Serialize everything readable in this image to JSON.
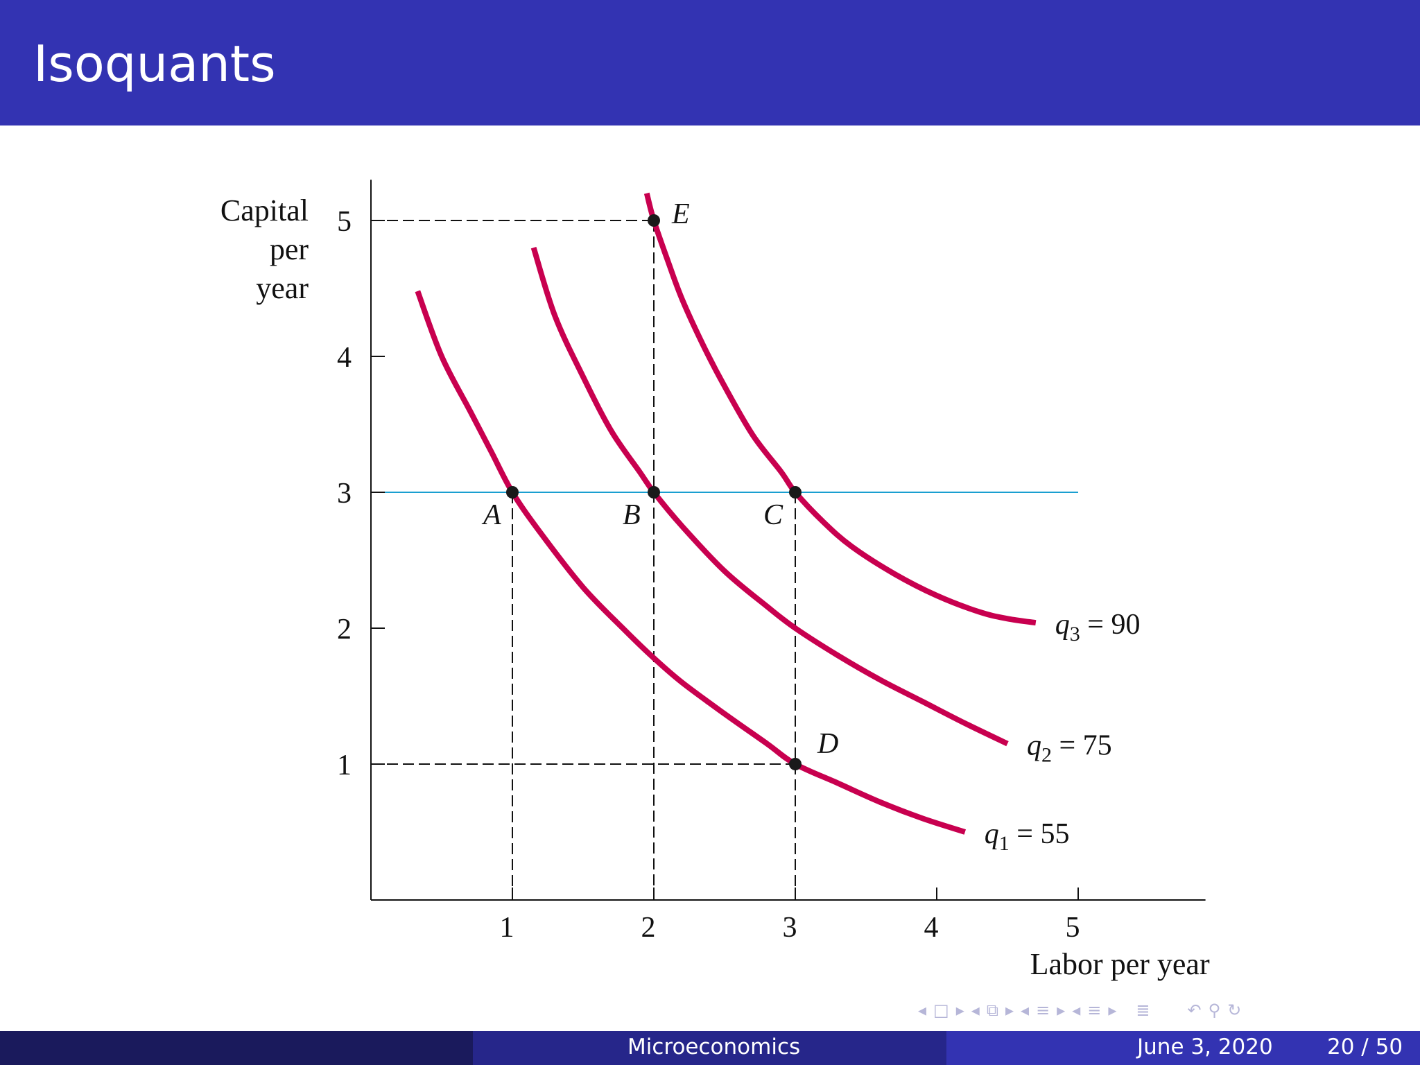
{
  "slide": {
    "title": "Isoquants"
  },
  "footer": {
    "course": "Microeconomics",
    "date": "June 3, 2020",
    "page": "20 / 50"
  },
  "nav_icons": [
    "nav-left-icon",
    "frame-icon",
    "nav-right-icon",
    "nav-left-icon",
    "subsection-icon",
    "nav-right-icon",
    "nav-left-icon",
    "section-icon",
    "nav-right-icon",
    "nav-left-icon",
    "section-icon",
    "nav-right-icon",
    "toc-icon",
    "undo-icon",
    "search-icon",
    "redo-icon"
  ],
  "colors": {
    "title_bar": "#3333b2",
    "isoquant": "#c8004f",
    "horizontal_line": "#1a9fd0",
    "points": "#1a1a1a"
  },
  "chart_data": {
    "type": "line",
    "xlabel": "Labor per year",
    "ylabel_lines": [
      "Capital",
      "per",
      "year"
    ],
    "xlim": [
      0,
      5.9
    ],
    "ylim": [
      0,
      5.3
    ],
    "xticks": [
      1,
      2,
      3,
      4,
      5
    ],
    "yticks": [
      1,
      2,
      3,
      4,
      5
    ],
    "grid": false,
    "series": [
      {
        "name": "q1 = 55",
        "label_main": "q",
        "label_sub": "1",
        "label_rest": " = 55",
        "x": [
          0.33,
          0.5,
          0.7,
          0.85,
          1.0,
          1.2,
          1.5,
          1.8,
          2.0,
          2.2,
          2.5,
          2.8,
          3.0,
          3.3,
          3.6,
          3.9,
          4.2
        ],
        "y": [
          4.48,
          4.0,
          3.6,
          3.3,
          3.0,
          2.7,
          2.3,
          1.98,
          1.78,
          1.6,
          1.37,
          1.15,
          1.0,
          0.86,
          0.72,
          0.6,
          0.5
        ]
      },
      {
        "name": "q2 = 75",
        "label_main": "q",
        "label_sub": "2",
        "label_rest": " = 75",
        "x": [
          1.15,
          1.3,
          1.5,
          1.7,
          1.9,
          2.0,
          2.2,
          2.5,
          2.8,
          3.0,
          3.3,
          3.6,
          3.9,
          4.2,
          4.5
        ],
        "y": [
          4.8,
          4.3,
          3.85,
          3.45,
          3.15,
          3.0,
          2.75,
          2.42,
          2.16,
          2.0,
          1.8,
          1.62,
          1.46,
          1.3,
          1.15
        ]
      },
      {
        "name": "q3 = 90",
        "label_main": "q",
        "label_sub": "3",
        "label_rest": " = 90",
        "x": [
          1.95,
          2.0,
          2.1,
          2.2,
          2.35,
          2.5,
          2.7,
          2.9,
          3.0,
          3.2,
          3.4,
          3.7,
          4.0,
          4.3,
          4.5,
          4.7
        ],
        "y": [
          5.2,
          5.0,
          4.7,
          4.42,
          4.08,
          3.78,
          3.42,
          3.15,
          3.0,
          2.78,
          2.6,
          2.4,
          2.24,
          2.12,
          2.07,
          2.04
        ]
      }
    ],
    "points": [
      {
        "label": "A",
        "x": 1,
        "y": 3
      },
      {
        "label": "B",
        "x": 2,
        "y": 3
      },
      {
        "label": "C",
        "x": 3,
        "y": 3
      },
      {
        "label": "D",
        "x": 3,
        "y": 1
      },
      {
        "label": "E",
        "x": 2,
        "y": 5
      }
    ],
    "horizontal_line": {
      "y": 3,
      "x_from": 0,
      "x_to": 5
    },
    "dashed_guides": [
      {
        "from": [
          0,
          5
        ],
        "to": [
          2,
          5
        ]
      },
      {
        "from": [
          2,
          5
        ],
        "to": [
          2,
          0
        ]
      },
      {
        "from": [
          0,
          1
        ],
        "to": [
          3,
          1
        ]
      },
      {
        "from": [
          1,
          3
        ],
        "to": [
          1,
          0
        ]
      },
      {
        "from": [
          3,
          3
        ],
        "to": [
          3,
          0
        ]
      }
    ]
  }
}
